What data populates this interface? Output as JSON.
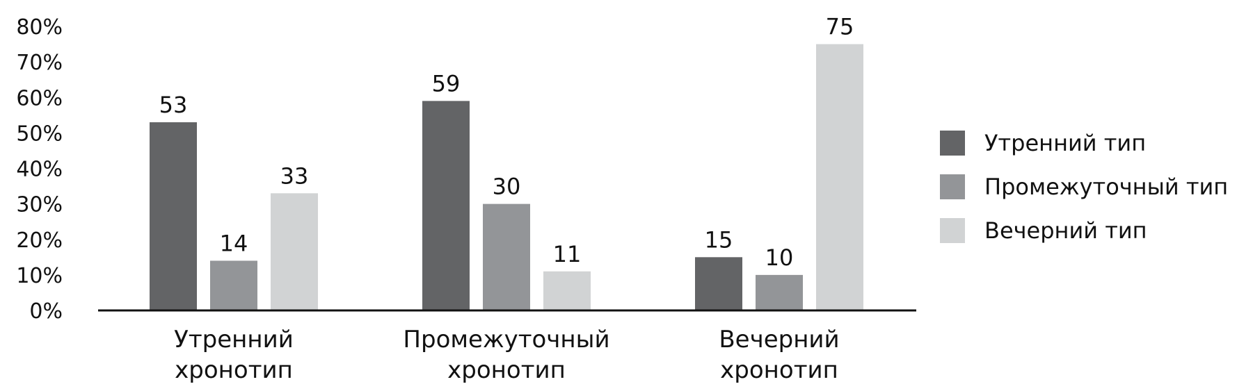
{
  "chart_data": {
    "type": "bar",
    "categories": [
      [
        "Утренний",
        "хронотип"
      ],
      [
        "Промежуточный",
        "хронотип"
      ],
      [
        "Вечерний",
        "хронотип"
      ]
    ],
    "series": [
      {
        "name": "Утренний тип",
        "color": "#636466",
        "values": [
          53,
          59,
          15
        ]
      },
      {
        "name": "Промежуточный тип",
        "color": "#939598",
        "values": [
          14,
          30,
          10
        ]
      },
      {
        "name": "Вечерний тип",
        "color": "#d1d3d4",
        "values": [
          33,
          11,
          75
        ]
      }
    ],
    "ylim": [
      0,
      80
    ],
    "yticks": [
      "0%",
      "10%",
      "20%",
      "30%",
      "40%",
      "50%",
      "60%",
      "70%",
      "80%"
    ],
    "data_labels": [
      [
        "53",
        "59",
        "15"
      ],
      [
        "14",
        "30",
        "10"
      ],
      [
        "33",
        "11",
        "75"
      ]
    ],
    "grid": false,
    "legend_position": "right"
  }
}
